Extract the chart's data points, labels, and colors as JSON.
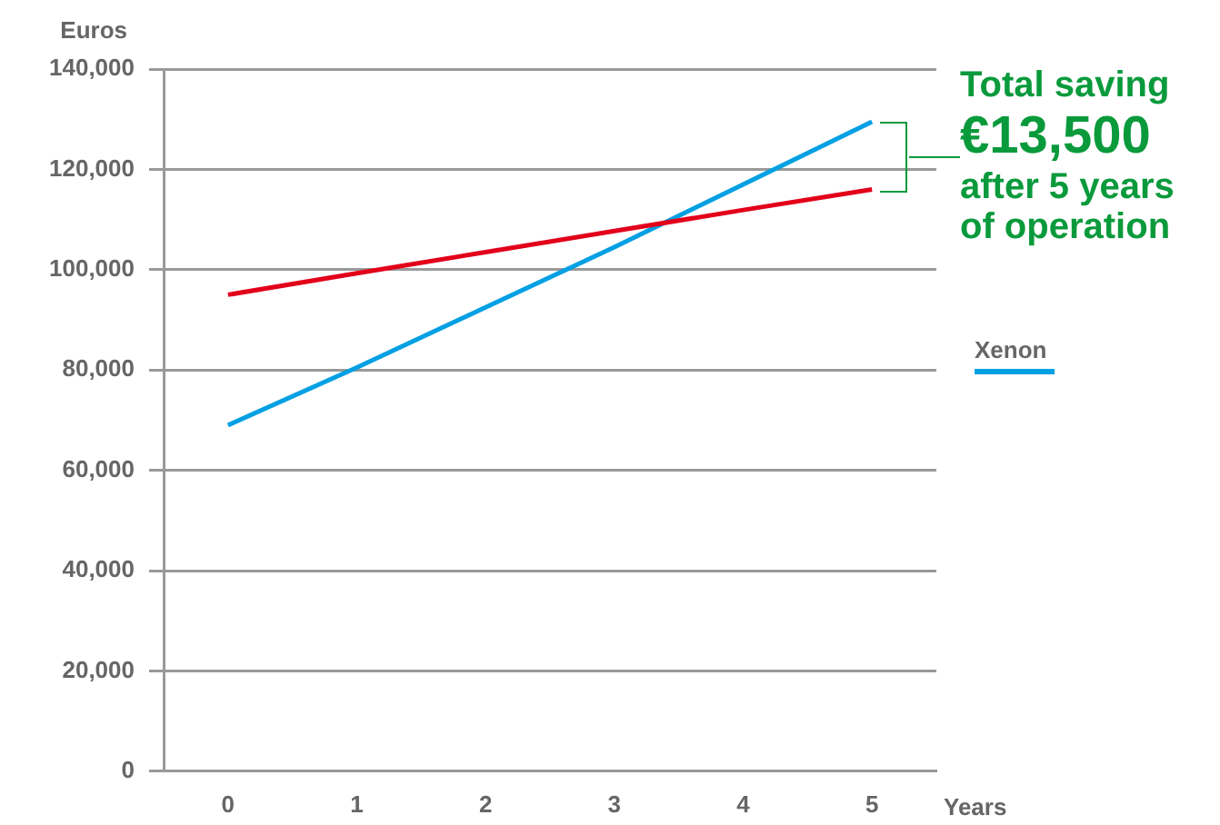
{
  "chart_data": {
    "type": "line",
    "xlabel": "Years",
    "ylabel": "Euros",
    "x": [
      0,
      1,
      2,
      3,
      4,
      5
    ],
    "series": [
      {
        "color": "#e2001a",
        "values": [
          95000,
          99300,
          103500,
          107700,
          111900,
          116000
        ]
      },
      {
        "name": "Xenon",
        "color": "#00a0e3",
        "values": [
          69000,
          80500,
          92500,
          104500,
          117000,
          129500
        ]
      }
    ],
    "xlim": [
      -0.5,
      5.5
    ],
    "xticks": [
      0,
      1,
      2,
      3,
      4,
      5
    ],
    "ylim": [
      0,
      140000
    ],
    "yticks": [
      0,
      {
        "value": 20000,
        "label": "20,000"
      },
      {
        "value": 40000,
        "label": "40,000"
      },
      {
        "value": 60000,
        "label": "60,000"
      },
      {
        "value": 80000,
        "label": "80,000"
      },
      {
        "value": 100000,
        "label": "100,000"
      },
      {
        "value": 120000,
        "label": "120,000"
      },
      {
        "value": 140000,
        "label": "140,000"
      }
    ],
    "grid": "y",
    "legend": "right",
    "marker": "none",
    "line_style": "solid",
    "annotations": [
      "Total saving",
      "€13,500",
      "after 5 years",
      "of operation"
    ]
  }
}
